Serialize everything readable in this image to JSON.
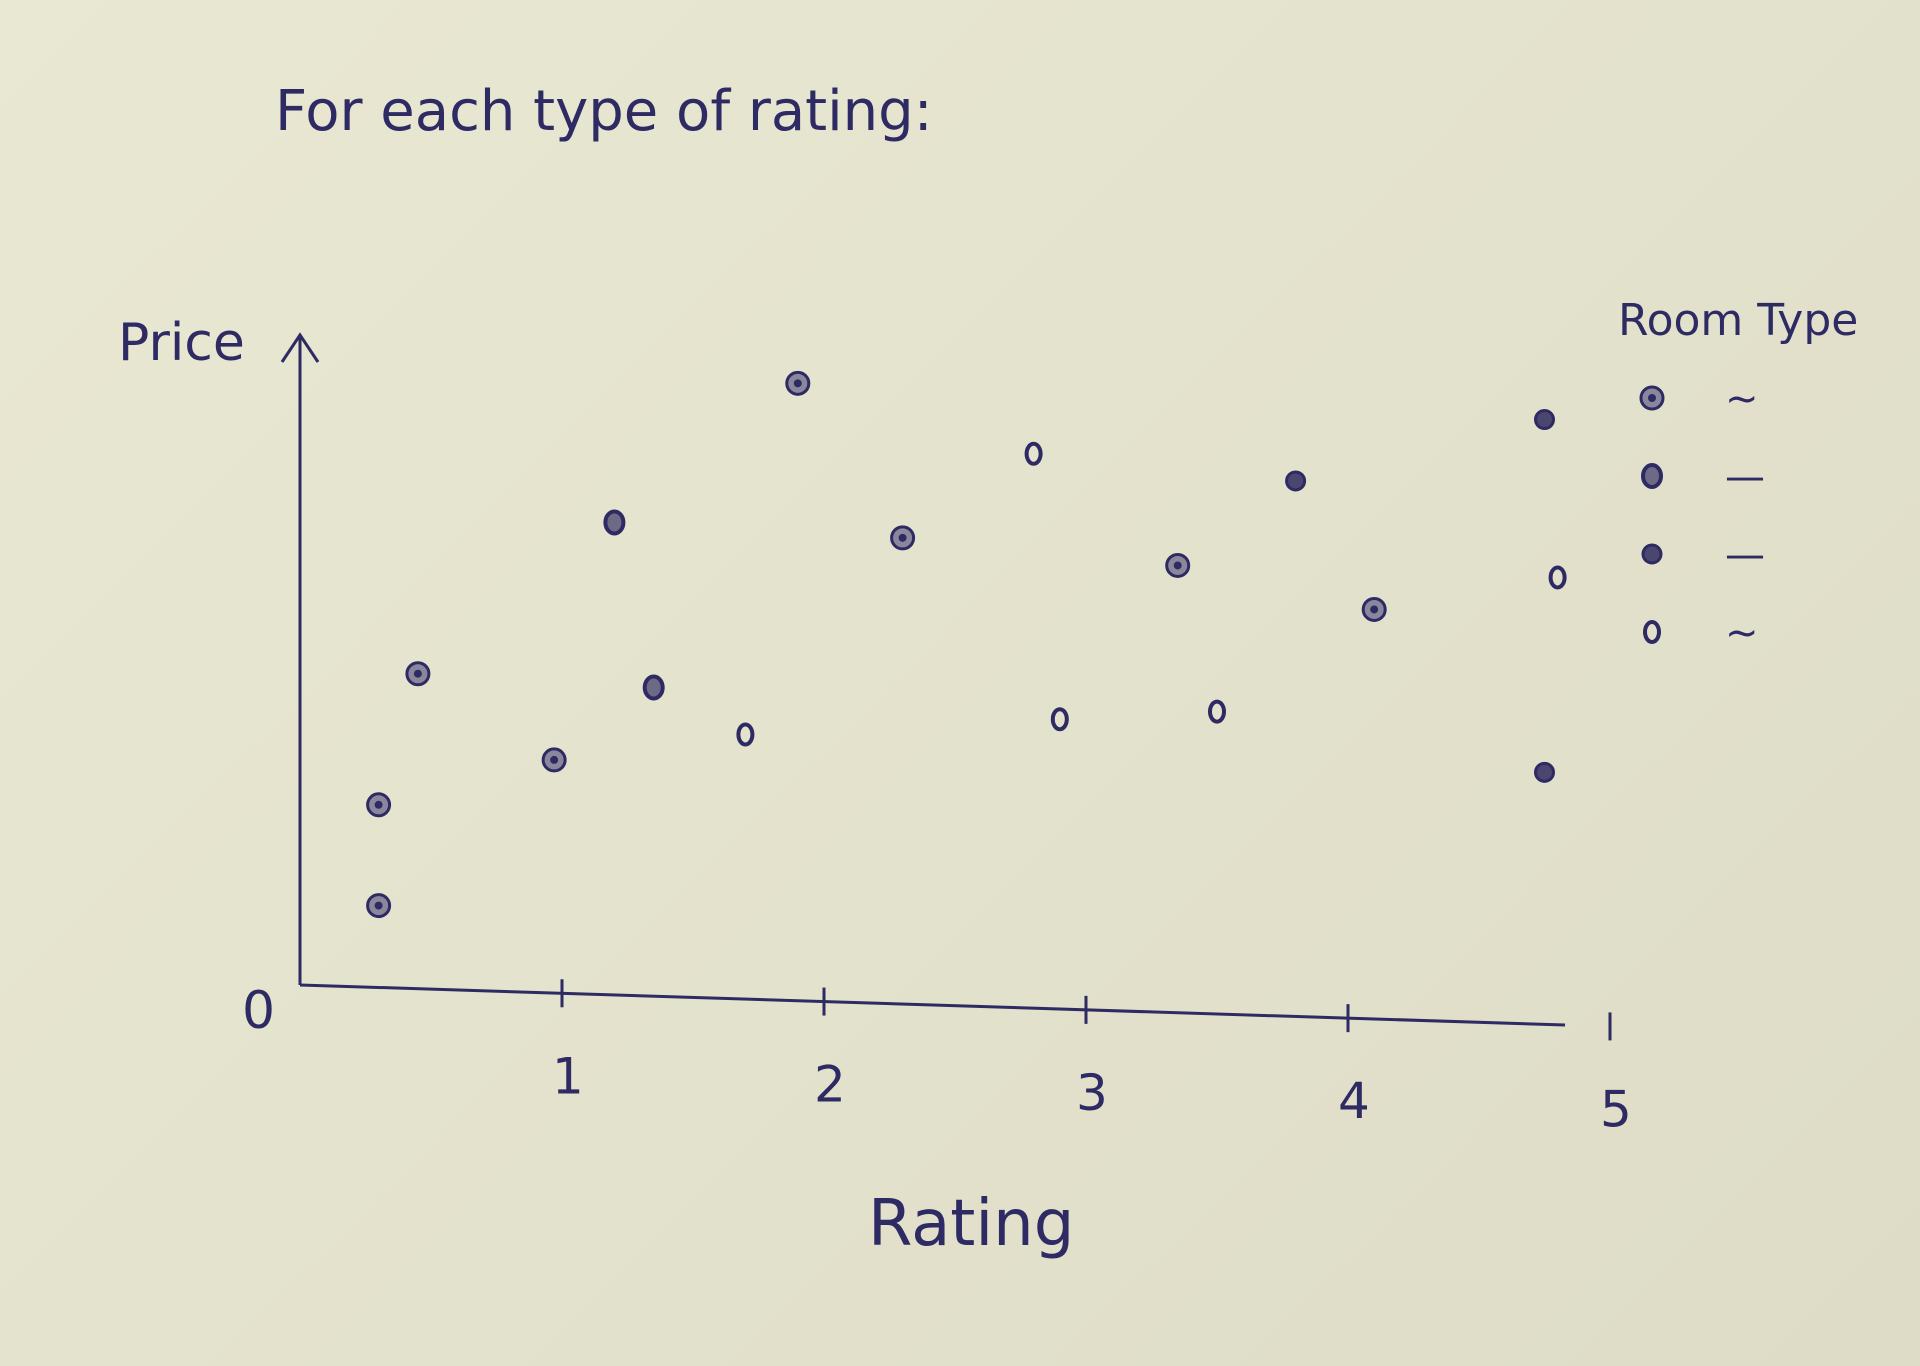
{
  "heading": "For each type of rating:",
  "colors": {
    "ink": "#2e2a63",
    "paper": "#e7e6d0"
  },
  "chart_data": {
    "type": "scatter",
    "title": "",
    "xlabel": "Rating",
    "ylabel": "Price",
    "origin_label": "0",
    "x_ticks": [
      1,
      2,
      3,
      4,
      5
    ],
    "x_tick_labels": [
      "1",
      "2",
      "3",
      "4",
      "5"
    ],
    "xlim": [
      0,
      5.3
    ],
    "ylim": [
      0,
      10
    ],
    "grid": false,
    "legend": {
      "title": "Room Type",
      "placement": "right",
      "entries": [
        {
          "marker": "dotted-circle",
          "label": "~"
        },
        {
          "marker": "thick-circle",
          "label": "—"
        },
        {
          "marker": "filled-circle",
          "label": "—"
        },
        {
          "marker": "open-circle",
          "label": "~"
        }
      ]
    },
    "points": [
      {
        "x": 0.3,
        "y": 1.3,
        "marker": "dotted-circle"
      },
      {
        "x": 0.3,
        "y": 2.9,
        "marker": "dotted-circle"
      },
      {
        "x": 0.45,
        "y": 5.0,
        "marker": "dotted-circle"
      },
      {
        "x": 0.97,
        "y": 3.7,
        "marker": "dotted-circle"
      },
      {
        "x": 1.2,
        "y": 7.5,
        "marker": "thick-circle"
      },
      {
        "x": 1.35,
        "y": 4.9,
        "marker": "thick-circle"
      },
      {
        "x": 1.7,
        "y": 4.2,
        "marker": "open-circle"
      },
      {
        "x": 1.9,
        "y": 9.8,
        "marker": "dotted-circle"
      },
      {
        "x": 2.3,
        "y": 7.4,
        "marker": "dotted-circle"
      },
      {
        "x": 2.8,
        "y": 8.8,
        "marker": "open-circle"
      },
      {
        "x": 2.9,
        "y": 4.6,
        "marker": "open-circle"
      },
      {
        "x": 3.35,
        "y": 7.1,
        "marker": "dotted-circle"
      },
      {
        "x": 3.5,
        "y": 4.8,
        "marker": "open-circle"
      },
      {
        "x": 3.8,
        "y": 8.5,
        "marker": "filled-circle"
      },
      {
        "x": 4.1,
        "y": 6.5,
        "marker": "dotted-circle"
      },
      {
        "x": 4.75,
        "y": 9.6,
        "marker": "filled-circle"
      },
      {
        "x": 4.8,
        "y": 7.1,
        "marker": "open-circle"
      },
      {
        "x": 4.75,
        "y": 4.0,
        "marker": "filled-circle"
      }
    ]
  }
}
